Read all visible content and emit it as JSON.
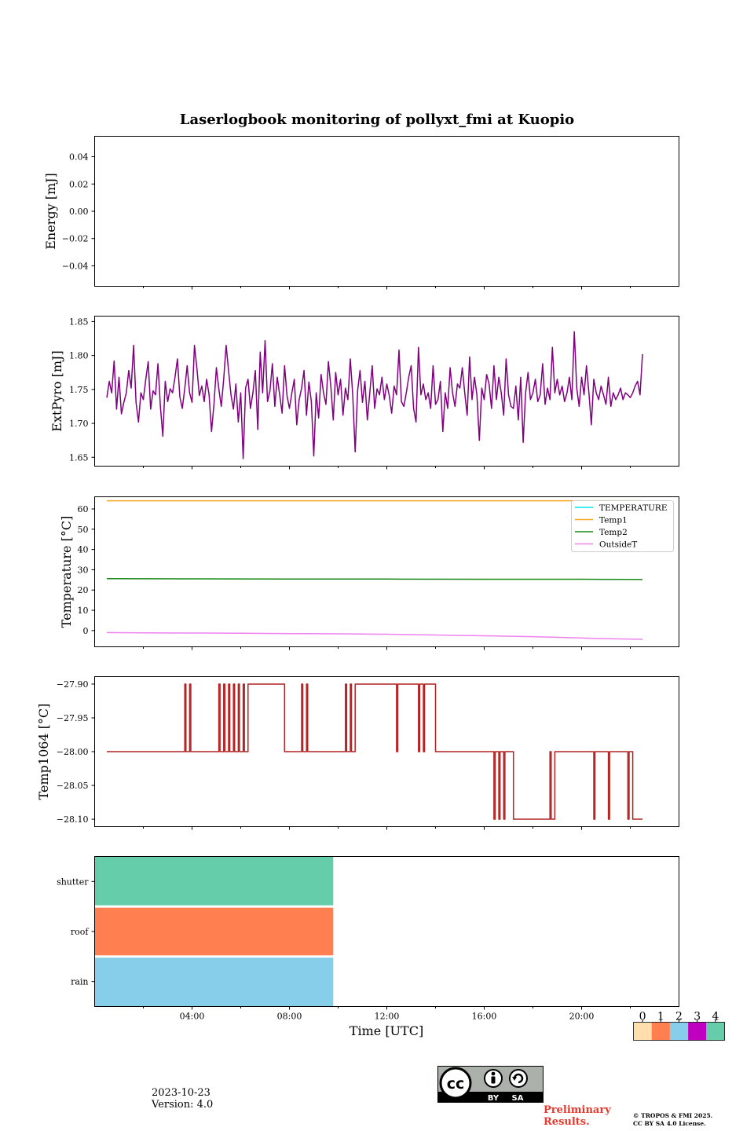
{
  "chart_data": [
    {
      "type": "scatter",
      "panel": "energy",
      "title": "Laserlogbook monitoring of pollyxt_fmi at Kuopio",
      "ylabel": "Energy [mJ]",
      "ylim": [
        -0.055,
        0.055
      ],
      "yticks": [
        0.04,
        0.02,
        0.0,
        -0.02,
        -0.04
      ],
      "ytick_labels": [
        "0.04",
        "0.02",
        "0.00",
        "−0.02",
        "−0.04"
      ],
      "series": []
    },
    {
      "type": "line",
      "panel": "extpyro",
      "ylabel": "ExtPyro [mJ]",
      "ylim": [
        1.637,
        1.858
      ],
      "yticks": [
        1.85,
        1.8,
        1.75,
        1.7,
        1.65
      ],
      "ytick_labels": [
        "1.85",
        "1.80",
        "1.75",
        "1.70",
        "1.65"
      ],
      "series": [
        {
          "name": "ExtPyro",
          "color": "#800080",
          "x_hours": [
            0.5,
            0.6,
            0.7,
            0.8,
            0.9,
            1.0,
            1.1,
            1.2,
            1.3,
            1.4,
            1.5,
            1.6,
            1.7,
            1.8,
            1.9,
            2.0,
            2.1,
            2.2,
            2.3,
            2.4,
            2.5,
            2.6,
            2.7,
            2.8,
            2.9,
            3.0,
            3.1,
            3.2,
            3.3,
            3.4,
            3.5,
            3.6,
            3.7,
            3.8,
            3.9,
            4.0,
            4.1,
            4.2,
            4.3,
            4.4,
            4.5,
            4.6,
            4.7,
            4.8,
            4.9,
            5.0,
            5.1,
            5.2,
            5.3,
            5.4,
            5.5,
            5.6,
            5.7,
            5.8,
            5.9,
            6.0,
            6.1,
            6.2,
            6.3,
            6.4,
            6.5,
            6.6,
            6.7,
            6.8,
            6.9,
            7.0,
            7.1,
            7.2,
            7.3,
            7.4,
            7.5,
            7.6,
            7.7,
            7.8,
            7.9,
            8.0,
            8.1,
            8.2,
            8.3,
            8.4,
            8.5,
            8.6,
            8.7,
            8.8,
            8.9,
            9.0,
            9.1,
            9.2,
            9.3,
            9.4,
            9.5,
            9.6,
            9.7,
            9.8,
            9.9,
            10.0,
            10.1,
            10.2,
            10.3,
            10.4,
            10.5,
            10.6,
            10.7,
            10.8,
            10.9,
            11.0,
            11.1,
            11.2,
            11.3,
            11.4,
            11.5,
            11.6,
            11.7,
            11.8,
            11.9,
            12.0,
            12.1,
            12.2,
            12.3,
            12.4,
            12.5,
            12.6,
            12.7,
            12.8,
            12.9,
            13.0,
            13.1,
            13.2,
            13.3,
            13.4,
            13.5,
            13.6,
            13.7,
            13.8,
            13.9,
            14.0,
            14.1,
            14.2,
            14.3,
            14.4,
            14.5,
            14.6,
            14.7,
            14.8,
            14.9,
            15.0,
            15.1,
            15.2,
            15.3,
            15.4,
            15.5,
            15.6,
            15.7,
            15.8,
            15.9,
            16.0,
            16.1,
            16.2,
            16.3,
            16.4,
            16.5,
            16.6,
            16.7,
            16.8,
            16.9,
            17.0,
            17.1,
            17.2,
            17.3,
            17.4,
            17.5,
            17.6,
            17.7,
            17.8,
            17.9,
            18.0,
            18.1,
            18.2,
            18.3,
            18.4,
            18.5,
            18.6,
            18.7,
            18.8,
            18.9,
            19.0,
            19.1,
            19.2,
            19.3,
            19.4,
            19.5,
            19.6,
            19.7,
            19.8,
            19.9,
            20.0,
            20.1,
            20.2,
            20.3,
            20.4,
            20.5,
            20.6,
            20.7,
            20.8,
            20.9,
            21.0,
            21.1,
            21.2,
            21.3,
            21.4,
            21.5,
            21.6,
            21.7,
            21.8,
            21.9,
            22.0,
            22.1,
            22.2,
            22.3,
            22.4,
            22.5
          ],
          "values": [
            1.738,
            1.762,
            1.745,
            1.792,
            1.721,
            1.768,
            1.714,
            1.731,
            1.745,
            1.778,
            1.752,
            1.815,
            1.731,
            1.702,
            1.745,
            1.735,
            1.765,
            1.791,
            1.721,
            1.748,
            1.742,
            1.788,
            1.725,
            1.681,
            1.762,
            1.732,
            1.751,
            1.745,
            1.768,
            1.795,
            1.739,
            1.722,
            1.751,
            1.785,
            1.745,
            1.731,
            1.815,
            1.781,
            1.741,
            1.755,
            1.732,
            1.765,
            1.742,
            1.688,
            1.728,
            1.782,
            1.751,
            1.725,
            1.765,
            1.815,
            1.778,
            1.742,
            1.721,
            1.758,
            1.702,
            1.745,
            1.648,
            1.752,
            1.765,
            1.722,
            1.745,
            1.778,
            1.691,
            1.805,
            1.745,
            1.822,
            1.732,
            1.748,
            1.788,
            1.725,
            1.768,
            1.742,
            1.715,
            1.785,
            1.741,
            1.722,
            1.745,
            1.765,
            1.698,
            1.735,
            1.752,
            1.778,
            1.712,
            1.761,
            1.732,
            1.652,
            1.745,
            1.708,
            1.772,
            1.745,
            1.728,
            1.791,
            1.755,
            1.705,
            1.775,
            1.742,
            1.765,
            1.712,
            1.752,
            1.735,
            1.795,
            1.742,
            1.658,
            1.748,
            1.778,
            1.731,
            1.762,
            1.705,
            1.745,
            1.785,
            1.722,
            1.751,
            1.742,
            1.768,
            1.735,
            1.758,
            1.741,
            1.715,
            1.755,
            1.742,
            1.808,
            1.732,
            1.725,
            1.745,
            1.768,
            1.785,
            1.722,
            1.702,
            1.812,
            1.742,
            1.758,
            1.735,
            1.745,
            1.722,
            1.785,
            1.728,
            1.735,
            1.762,
            1.688,
            1.745,
            1.722,
            1.782,
            1.745,
            1.725,
            1.758,
            1.752,
            1.782,
            1.745,
            1.712,
            1.798,
            1.735,
            1.768,
            1.742,
            1.675,
            1.752,
            1.735,
            1.772,
            1.758,
            1.722,
            1.785,
            1.735,
            1.768,
            1.745,
            1.712,
            1.795,
            1.742,
            1.725,
            1.722,
            1.755,
            1.705,
            1.768,
            1.672,
            1.745,
            1.775,
            1.735,
            1.745,
            1.765,
            1.732,
            1.742,
            1.788,
            1.728,
            1.752,
            1.735,
            1.812,
            1.745,
            1.765,
            1.742,
            1.755,
            1.732,
            1.745,
            1.768,
            1.735,
            1.835,
            1.752,
            1.725,
            1.768,
            1.742,
            1.785,
            1.745,
            1.698,
            1.765,
            1.745,
            1.735,
            1.755,
            1.742,
            1.728,
            1.768,
            1.725,
            1.745,
            1.735,
            1.742,
            1.752,
            1.735,
            1.745,
            1.742,
            1.738,
            1.745,
            1.755,
            1.762,
            1.742,
            1.802
          ]
        }
      ]
    },
    {
      "type": "line",
      "panel": "temperature",
      "ylabel": "Temperature [°C]",
      "ylim": [
        -8,
        66
      ],
      "yticks": [
        60,
        50,
        40,
        30,
        20,
        10,
        0
      ],
      "ytick_labels": [
        "60",
        "50",
        "40",
        "30",
        "20",
        "10",
        "0"
      ],
      "legend": "top-right",
      "series": [
        {
          "name": "TEMPERATURE",
          "color": "#00e5ee",
          "x_hours": [],
          "values": []
        },
        {
          "name": "Temp1",
          "color": "#f5a623",
          "x_hours": [
            0.5,
            22.5
          ],
          "values": [
            64.0,
            64.0
          ]
        },
        {
          "name": "Temp2",
          "color": "#1a8a1a",
          "x_hours": [
            0.5,
            4.0,
            8.0,
            12.0,
            16.0,
            20.0,
            22.5
          ],
          "values": [
            25.6,
            25.5,
            25.4,
            25.4,
            25.3,
            25.3,
            25.2
          ]
        },
        {
          "name": "OutsideT",
          "color": "#ee82ee",
          "x_hours": [
            0.5,
            2.0,
            4.0,
            6.0,
            8.0,
            10.0,
            12.0,
            14.0,
            16.0,
            18.0,
            19.5,
            21.0,
            22.5
          ],
          "values": [
            -1.0,
            -1.1,
            -1.2,
            -1.3,
            -1.5,
            -1.6,
            -1.8,
            -2.2,
            -2.6,
            -3.0,
            -3.5,
            -4.0,
            -4.3
          ]
        }
      ]
    },
    {
      "type": "line",
      "panel": "temp1064",
      "ylabel": "Temp1064 [°C]",
      "ylim": [
        -28.111,
        -27.889
      ],
      "yticks": [
        -27.9,
        -27.95,
        -28.0,
        -28.05,
        -28.1
      ],
      "ytick_labels": [
        "−27.90",
        "−27.95",
        "−28.00",
        "−28.05",
        "−28.10"
      ],
      "series": [
        {
          "name": "Temp1064",
          "color": "#b22222",
          "x_hours": [
            0.5,
            3.7,
            3.7,
            3.75,
            3.75,
            3.9,
            3.9,
            3.95,
            3.95,
            5.1,
            5.1,
            5.15,
            5.15,
            5.3,
            5.3,
            5.35,
            5.35,
            5.5,
            5.5,
            5.55,
            5.55,
            5.7,
            5.7,
            5.75,
            5.75,
            5.9,
            5.9,
            5.95,
            5.95,
            6.1,
            6.1,
            6.15,
            6.15,
            6.3,
            6.3,
            6.35,
            6.35,
            7.8,
            7.8,
            8.5,
            8.5,
            8.55,
            8.55,
            8.7,
            8.7,
            8.75,
            8.75,
            10.3,
            10.3,
            10.35,
            10.35,
            10.5,
            10.5,
            10.55,
            10.55,
            10.7,
            10.7,
            10.75,
            10.75,
            12.4,
            12.4,
            12.45,
            12.45,
            13.3,
            13.3,
            13.35,
            13.35,
            13.5,
            13.5,
            13.55,
            13.55,
            14.0,
            14.0,
            16.4,
            16.4,
            16.45,
            16.45,
            16.6,
            16.6,
            16.65,
            16.65,
            16.8,
            16.8,
            16.85,
            16.85,
            17.2,
            17.2,
            17.25,
            17.25,
            18.7,
            18.7,
            18.75,
            18.75,
            18.9,
            18.9,
            18.95,
            18.95,
            20.5,
            20.5,
            20.55,
            20.55,
            21.1,
            21.1,
            21.15,
            21.15,
            21.9,
            21.9,
            21.95,
            21.95,
            22.1,
            22.1,
            22.15,
            22.15,
            22.5
          ],
          "values": [
            -28.0,
            -28.0,
            -27.9,
            -27.9,
            -28.0,
            -28.0,
            -27.9,
            -27.9,
            -28.0,
            -28.0,
            -27.9,
            -27.9,
            -28.0,
            -28.0,
            -27.9,
            -27.9,
            -28.0,
            -28.0,
            -27.9,
            -27.9,
            -28.0,
            -28.0,
            -27.9,
            -27.9,
            -28.0,
            -28.0,
            -27.9,
            -27.9,
            -28.0,
            -28.0,
            -27.9,
            -27.9,
            -28.0,
            -28.0,
            -27.9,
            -27.9,
            -27.9,
            -27.9,
            -28.0,
            -28.0,
            -27.9,
            -27.9,
            -28.0,
            -28.0,
            -27.9,
            -27.9,
            -28.0,
            -28.0,
            -27.9,
            -27.9,
            -28.0,
            -28.0,
            -27.9,
            -27.9,
            -28.0,
            -28.0,
            -27.9,
            -27.9,
            -27.9,
            -27.9,
            -28.0,
            -28.0,
            -27.9,
            -27.9,
            -28.0,
            -28.0,
            -27.9,
            -27.9,
            -28.0,
            -28.0,
            -27.9,
            -27.9,
            -28.0,
            -28.0,
            -28.1,
            -28.1,
            -28.0,
            -28.0,
            -28.1,
            -28.1,
            -28.0,
            -28.0,
            -28.1,
            -28.1,
            -28.0,
            -28.0,
            -28.1,
            -28.1,
            -28.1,
            -28.1,
            -28.0,
            -28.0,
            -28.1,
            -28.1,
            -28.0,
            -28.0,
            -28.0,
            -28.0,
            -28.1,
            -28.1,
            -28.0,
            -28.0,
            -28.1,
            -28.1,
            -28.0,
            -28.0,
            -28.1,
            -28.1,
            -28.0,
            -28.0,
            -28.1,
            -28.1,
            -28.1,
            -28.1
          ]
        }
      ]
    },
    {
      "type": "heatmap",
      "panel": "status",
      "xlabel": "Time [UTC]",
      "xlim_hours": [
        0,
        24
      ],
      "xticks_hours": [
        4,
        8,
        12,
        16,
        20
      ],
      "xtick_labels": [
        "04:00",
        "08:00",
        "12:00",
        "16:00",
        "20:00"
      ],
      "rows": [
        "shutter",
        "roof",
        "rain"
      ],
      "segments": [
        {
          "row": "shutter",
          "start_hour": 0,
          "end_hour": 9.8,
          "state": 4
        },
        {
          "row": "roof",
          "start_hour": 0,
          "end_hour": 9.8,
          "state": 1
        },
        {
          "row": "rain",
          "start_hour": 0,
          "end_hour": 9.8,
          "state": 2
        }
      ],
      "colorbar": {
        "labels": [
          "0",
          "1",
          "2",
          "3",
          "4"
        ],
        "colors": [
          "#ffdead",
          "#ff7f50",
          "#87ceeb",
          "#c000c0",
          "#66cdaa"
        ]
      }
    }
  ],
  "footer": {
    "date": "2023-10-23",
    "version": "Version: 4.0",
    "preliminary": "Preliminary Results.",
    "copyright_line1": "© TROPOS & FMI 2025.",
    "copyright_line2": "CC BY SA 4.0 License.",
    "cc_labels": [
      "BY",
      "SA"
    ],
    "cc_text": "cc"
  }
}
